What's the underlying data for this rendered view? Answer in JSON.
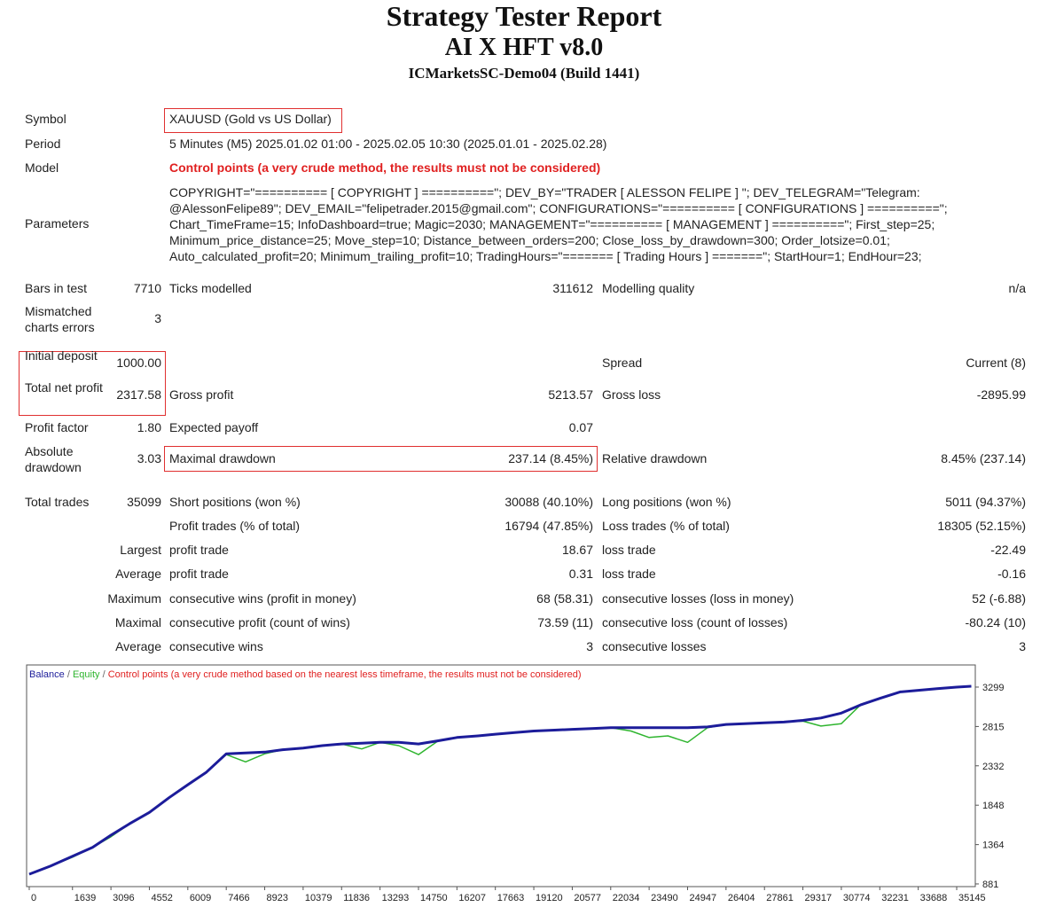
{
  "header": {
    "title": "Strategy Tester Report",
    "subtitle": "AI X HFT v8.0",
    "server": "ICMarketsSC-Demo04 (Build 1441)"
  },
  "report": {
    "summary": [
      [
        "Symbol",
        "XAUUSD (Gold vs US Dollar)"
      ],
      [
        "Period",
        "5 Minutes (M5) 2025.01.02 01:00 - 2025.02.05 10:30 (2025.01.01 - 2025.02.28)"
      ],
      [
        "Model",
        "Control points (a very crude method, the results must not be considered)"
      ],
      [
        "Parameters",
        "COPYRIGHT=\"========== [ COPYRIGHT ] ==========\"; DEV_BY=\"TRADER [ ALESSON FELIPE ] \"; DEV_TELEGRAM=\"Telegram: @AlessonFelipe89\"; DEV_EMAIL=\"felipetrader.2015@gmail.com\"; CONFIGURATIONS=\"========== [ CONFIGURATIONS ] ==========\"; Chart_TimeFrame=15; InfoDashboard=true; Magic=2030; MANAGEMENT=\"========== [ MANAGEMENT ] ==========\"; First_step=25; Minimum_price_distance=25; Move_step=10; Distance_between_orders=200; Close_loss_by_drawdown=300; Order_lotsize=0.01; Auto_calculated_profit=20; Minimum_trailing_profit=10; TradingHours=\"======= [ Trading Hours ] =======\"; StartHour=1; EndHour=23;"
      ]
    ],
    "stats": [
      [
        "Bars in test",
        "7710",
        "Ticks modelled",
        "311612",
        "Modelling quality",
        "n/a"
      ],
      [
        "Mismatched charts errors",
        "3",
        null,
        null,
        null,
        null
      ],
      [
        "Initial deposit",
        "1000.00",
        null,
        null,
        "Spread",
        "Current (8)"
      ],
      [
        "Total net profit",
        "2317.58",
        "Gross profit",
        "5213.57",
        "Gross loss",
        "-2895.99"
      ],
      [
        "Profit factor",
        "1.80",
        "Expected payoff",
        "0.07",
        null,
        null
      ],
      [
        "Absolute drawdown",
        "3.03",
        "Maximal drawdown",
        "237.14 (8.45%)",
        "Relative drawdown",
        "8.45% (237.14)"
      ],
      [
        "Total trades",
        "35099",
        "Short positions (won %)",
        "30088 (40.10%)",
        "Long positions (won %)",
        "5011 (94.37%)"
      ],
      [
        null,
        null,
        "Profit trades (% of total)",
        "16794 (47.85%)",
        "Loss trades (% of total)",
        "18305 (52.15%)"
      ],
      [
        null,
        "Largest",
        "profit trade",
        "18.67",
        "loss trade",
        "-22.49"
      ],
      [
        null,
        "Average",
        "profit trade",
        "0.31",
        "loss trade",
        "-0.16"
      ],
      [
        null,
        "Maximum",
        "consecutive wins (profit in money)",
        "68 (58.31)",
        "consecutive losses (loss in money)",
        "52 (-6.88)"
      ],
      [
        null,
        "Maximal",
        "consecutive profit (count of wins)",
        "73.59 (11)",
        "consecutive loss (count of losses)",
        "-80.24 (10)"
      ],
      [
        null,
        "Average",
        "consecutive wins",
        "3",
        "consecutive losses",
        "3"
      ]
    ]
  },
  "chart_data": {
    "type": "line",
    "legend_separator": "/",
    "legend_note": "Control points (a very crude method based on the nearest less timeframe, the results must not be considered)",
    "legend_note_color": "#e02020",
    "x": [
      0,
      800,
      1639,
      2400,
      3096,
      3800,
      4552,
      5300,
      6009,
      6700,
      7466,
      8200,
      8923,
      9600,
      10379,
      11100,
      11836,
      12600,
      13293,
      14000,
      14750,
      15500,
      16207,
      17000,
      17663,
      18400,
      19120,
      19900,
      20577,
      21300,
      22034,
      22800,
      23490,
      24200,
      24947,
      25700,
      26404,
      27100,
      27861,
      28600,
      29317,
      30000,
      30774,
      31500,
      32231,
      33000,
      33688,
      34400,
      35145,
      35700
    ],
    "series": [
      {
        "name": "Balance",
        "color": "#1c1c9a",
        "values": [
          1000,
          1100,
          1220,
          1330,
          1480,
          1620,
          1760,
          1940,
          2100,
          2250,
          2480,
          2490,
          2500,
          2530,
          2550,
          2580,
          2600,
          2610,
          2620,
          2620,
          2600,
          2640,
          2680,
          2700,
          2720,
          2740,
          2760,
          2770,
          2780,
          2790,
          2800,
          2800,
          2800,
          2800,
          2800,
          2810,
          2840,
          2850,
          2860,
          2870,
          2890,
          2920,
          2980,
          3080,
          3160,
          3240,
          3260,
          3280,
          3299,
          3310
        ]
      },
      {
        "name": "Equity",
        "color": "#2fb52f",
        "values": [
          1000,
          1100,
          1210,
          1330,
          1460,
          1620,
          1760,
          1940,
          2100,
          2250,
          2470,
          2380,
          2480,
          2530,
          2550,
          2580,
          2600,
          2540,
          2620,
          2580,
          2470,
          2640,
          2680,
          2700,
          2720,
          2740,
          2760,
          2770,
          2780,
          2790,
          2800,
          2760,
          2680,
          2700,
          2620,
          2800,
          2840,
          2850,
          2860,
          2870,
          2880,
          2820,
          2850,
          3080,
          3160,
          3240,
          3260,
          3280,
          3299,
          3310
        ]
      }
    ],
    "xlim": [
      -100,
      35850
    ],
    "ylim": [
      848,
      3571
    ],
    "xticks": [
      0,
      1639,
      3096,
      4552,
      6009,
      7466,
      8923,
      10379,
      11836,
      13293,
      14750,
      16207,
      17663,
      19120,
      20577,
      22034,
      23490,
      24947,
      26404,
      27861,
      29317,
      30774,
      32231,
      33688,
      35145
    ],
    "yticks": [
      881,
      1364,
      1848,
      2332,
      2815,
      3299
    ],
    "grid": false
  }
}
